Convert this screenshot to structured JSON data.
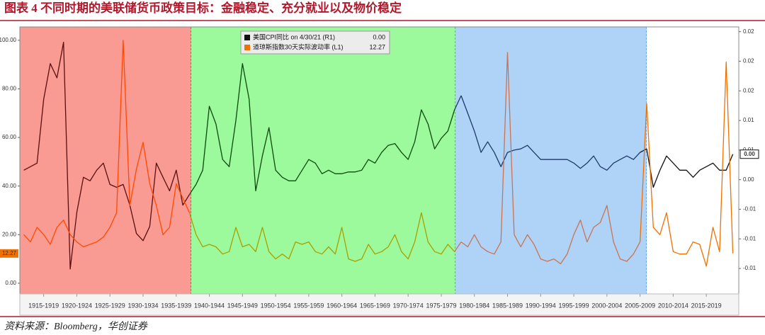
{
  "chart_data": {
    "type": "line",
    "title": "图表 4  不同时期的美联储货币政策目标：金融稳定、充分就业以及物价稳定",
    "source": "资料来源：Bloomberg，华创证券",
    "x": [
      1914,
      1915,
      1916,
      1917,
      1918,
      1919,
      1920,
      1921,
      1922,
      1923,
      1924,
      1925,
      1926,
      1927,
      1928,
      1929,
      1930,
      1931,
      1932,
      1933,
      1934,
      1935,
      1936,
      1937,
      1938,
      1939,
      1940,
      1941,
      1942,
      1943,
      1944,
      1945,
      1946,
      1947,
      1948,
      1949,
      1950,
      1951,
      1952,
      1953,
      1954,
      1955,
      1956,
      1957,
      1958,
      1959,
      1960,
      1961,
      1962,
      1963,
      1964,
      1965,
      1966,
      1967,
      1968,
      1969,
      1970,
      1971,
      1972,
      1973,
      1974,
      1975,
      1976,
      1977,
      1978,
      1979,
      1980,
      1981,
      1982,
      1983,
      1984,
      1985,
      1986,
      1987,
      1988,
      1989,
      1990,
      1991,
      1992,
      1993,
      1994,
      1995,
      1996,
      1997,
      1998,
      1999,
      2000,
      2001,
      2002,
      2003,
      2004,
      2005,
      2006,
      2007,
      2008,
      2009,
      2010,
      2011,
      2012,
      2013,
      2014,
      2015,
      2016,
      2017,
      2018,
      2019,
      2020,
      2021
    ],
    "series": [
      {
        "name": "美国CPI同比 on 4/30/21 (R1)",
        "last_value_label": "0.00",
        "color": "#111111",
        "axis": "y2",
        "values": [
          0.0016,
          0.0022,
          0.0028,
          0.0136,
          0.0196,
          0.0172,
          0.0232,
          -0.0151,
          -0.0055,
          0.0004,
          -0.0002,
          0.0016,
          0.0028,
          -0.0008,
          -0.0013,
          -0.0008,
          -0.0043,
          -0.0091,
          -0.0103,
          -0.0079,
          0.0028,
          0.0004,
          -0.0019,
          0.0016,
          -0.0043,
          -0.0025,
          -0.0008,
          0.0016,
          0.0124,
          0.0094,
          0.0034,
          0.0022,
          0.01,
          0.0196,
          0.0136,
          -0.0019,
          0.004,
          0.0088,
          0.0016,
          0.0004,
          -0.0002,
          -0.0002,
          0.0016,
          0.0034,
          0.0028,
          0.001,
          0.0016,
          0.001,
          0.001,
          0.0013,
          0.0013,
          0.0016,
          0.0034,
          0.0028,
          0.0046,
          0.0058,
          0.0061,
          0.0046,
          0.0034,
          0.0064,
          0.0118,
          0.0094,
          0.0052,
          0.007,
          0.0082,
          0.0118,
          0.0142,
          0.0112,
          0.0082,
          0.0046,
          0.0064,
          0.0046,
          0.0022,
          0.0046,
          0.005,
          0.0052,
          0.0058,
          0.0046,
          0.0034,
          0.0034,
          0.0034,
          0.0034,
          0.0034,
          0.0028,
          0.0019,
          0.0028,
          0.004,
          0.0022,
          0.0016,
          0.0028,
          0.0034,
          0.004,
          0.0034,
          0.0046,
          0.0052,
          -0.0013,
          0.0016,
          0.004,
          0.0028,
          0.0016,
          0.0016,
          0.0004,
          0.0016,
          0.0022,
          0.0028,
          0.0016,
          0.0016,
          0.0043
        ]
      },
      {
        "name": "道琼斯指数30天实际波动率 (L1)",
        "last_value_label": "12.27",
        "color": "#f07000",
        "values": [
          20,
          17,
          23,
          20,
          16,
          23,
          26,
          20,
          17,
          15,
          16,
          17,
          19,
          23,
          29,
          100,
          32,
          47,
          58,
          41,
          32,
          20,
          23,
          41,
          35,
          29,
          20,
          15,
          16,
          15,
          12,
          13,
          23,
          15,
          16,
          13,
          23,
          13,
          10,
          12,
          10,
          17,
          16,
          17,
          13,
          12,
          15,
          12,
          23,
          10,
          9,
          10,
          16,
          12,
          13,
          15,
          20,
          13,
          10,
          17,
          29,
          17,
          13,
          12,
          16,
          13,
          17,
          15,
          20,
          15,
          13,
          12,
          17,
          95,
          20,
          15,
          20,
          16,
          10,
          9,
          10,
          8,
          12,
          20,
          26,
          17,
          23,
          25,
          32,
          17,
          10,
          9,
          12,
          17,
          74,
          23,
          20,
          29,
          13,
          12,
          12,
          17,
          16,
          7,
          23,
          13,
          91,
          12.27
        ]
      }
    ],
    "regions": [
      {
        "from": 1913.4,
        "to": 1939.27,
        "fill": "#f99a93",
        "edge": "#d42020",
        "line_colors": [
          "#5a1010",
          "#ff4a00"
        ]
      },
      {
        "from": 1939.27,
        "to": 1979.1,
        "fill": "#9cf99c",
        "edge": "#22b022",
        "line_colors": [
          "#0c4a0c",
          "#a8a000"
        ]
      },
      {
        "from": 1979.1,
        "to": 2008.0,
        "fill": "#afd2f7",
        "edge": "#3a8ae0",
        "line_colors": [
          "#1e3a68",
          "#c87454"
        ]
      },
      {
        "from": 2008.0,
        "to": 2021.9,
        "fill": "#ffffff",
        "line_colors": [
          "#111111",
          "#f07000"
        ]
      }
    ],
    "xlim": [
      1913.4,
      2021.9
    ],
    "xticks": [
      {
        "value": 1917,
        "label": "1915-1919"
      },
      {
        "value": 1922,
        "label": "1920-1924"
      },
      {
        "value": 1927,
        "label": "1925-1929"
      },
      {
        "value": 1932,
        "label": "1930-1934"
      },
      {
        "value": 1937,
        "label": "1935-1939"
      },
      {
        "value": 1942,
        "label": "1940-1944"
      },
      {
        "value": 1947,
        "label": "1945-1949"
      },
      {
        "value": 1952,
        "label": "1950-1954"
      },
      {
        "value": 1957,
        "label": "1955-1959"
      },
      {
        "value": 1962,
        "label": "1960-1964"
      },
      {
        "value": 1967,
        "label": "1965-1969"
      },
      {
        "value": 1972,
        "label": "1970-1974"
      },
      {
        "value": 1977,
        "label": "1975-1979"
      },
      {
        "value": 1982,
        "label": "1980-1984"
      },
      {
        "value": 1987,
        "label": "1985-1989"
      },
      {
        "value": 1992,
        "label": "1990-1994"
      },
      {
        "value": 1997,
        "label": "1995-1999"
      },
      {
        "value": 2002,
        "label": "2000-2004"
      },
      {
        "value": 2007,
        "label": "2005-2009"
      },
      {
        "value": 2012,
        "label": "2010-2014"
      },
      {
        "value": 2017,
        "label": "2015-2019"
      }
    ],
    "ylim": [
      -4.4,
      105.5
    ],
    "yticks": [
      {
        "value": 0,
        "label": "0.00"
      },
      {
        "value": 20,
        "label": "20.00"
      },
      {
        "value": 40,
        "label": "40.00"
      },
      {
        "value": 60,
        "label": "60.00"
      },
      {
        "value": 80,
        "label": "80.00"
      },
      {
        "value": 100,
        "label": "100.00"
      }
    ],
    "y2lim": [
      -0.0193,
      0.0258
    ],
    "y2ticks": [
      {
        "value": 0.025,
        "label": "0.02"
      },
      {
        "value": 0.02,
        "label": "0.02"
      },
      {
        "value": 0.015,
        "label": "0.02"
      },
      {
        "value": 0.01,
        "label": "0.01"
      },
      {
        "value": 0.005,
        "label": "0.01"
      },
      {
        "value": 0,
        "label": "0.00"
      },
      {
        "value": -0.005,
        "label": "-0.01"
      },
      {
        "value": -0.01,
        "label": "-0.01"
      },
      {
        "value": -0.015,
        "label": "-0.01"
      }
    ]
  }
}
